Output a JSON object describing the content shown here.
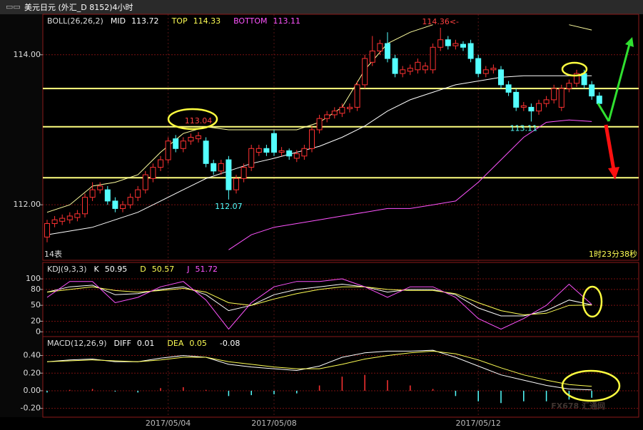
{
  "header": {
    "title": "美元日元 (外汇_D 8152)4小时"
  },
  "watermark": "FX678 汇通网",
  "chart_data": [
    {
      "type": "candlestick",
      "name": "BOLL(26,26,2)",
      "readouts": [
        {
          "label": "MID",
          "value": 113.72,
          "color": "#ffffff"
        },
        {
          "label": "TOP",
          "value": 114.33,
          "color": "#ffff54"
        },
        {
          "label": "BOTTOM",
          "value": 113.11,
          "color": "#ff54ff"
        }
      ],
      "categories": [
        null,
        null,
        null,
        null,
        null,
        null,
        null,
        null,
        null,
        null,
        null,
        null,
        null,
        null,
        null,
        null,
        "2017/05/04",
        null,
        null,
        null,
        null,
        null,
        null,
        null,
        null,
        null,
        null,
        null,
        null,
        null,
        "2017/05/08",
        null,
        null,
        null,
        null,
        null,
        null,
        null,
        null,
        null,
        null,
        null,
        null,
        null,
        null,
        null,
        null,
        null,
        null,
        null,
        null,
        null,
        null,
        null,
        null,
        null,
        null,
        "2017/05/12",
        null,
        null,
        null,
        null,
        null,
        null,
        null,
        null,
        null,
        null,
        null,
        null,
        null,
        null,
        null,
        null
      ],
      "open": [
        111.57,
        111.75,
        111.78,
        111.8,
        111.83,
        111.88,
        112.1,
        112.2,
        112.2,
        112.05,
        111.95,
        112.0,
        112.1,
        112.2,
        112.35,
        112.5,
        112.6,
        112.88,
        112.75,
        112.85,
        112.88,
        112.85,
        112.55,
        112.45,
        112.6,
        112.2,
        112.35,
        112.5,
        112.7,
        112.75,
        112.95,
        112.7,
        112.72,
        112.62,
        112.65,
        112.75,
        113.0,
        113.15,
        113.2,
        113.22,
        113.28,
        113.3,
        113.6,
        113.9,
        114.05,
        114.15,
        113.95,
        113.75,
        113.78,
        113.8,
        113.8,
        113.8,
        114.1,
        114.2,
        114.12,
        114.14,
        114.15,
        113.95,
        113.75,
        113.8,
        113.8,
        113.6,
        113.5,
        113.3,
        113.3,
        113.25,
        113.35,
        113.4,
        113.3,
        113.55,
        113.62,
        113.75,
        113.6,
        113.45
      ],
      "high": [
        111.8,
        111.85,
        111.87,
        111.9,
        111.93,
        112.15,
        112.3,
        112.3,
        112.25,
        112.1,
        112.05,
        112.15,
        112.25,
        112.45,
        112.55,
        112.65,
        112.9,
        112.93,
        112.9,
        112.95,
        112.97,
        112.9,
        112.6,
        112.6,
        112.65,
        112.4,
        112.55,
        112.8,
        112.8,
        112.8,
        113.0,
        112.77,
        112.75,
        112.73,
        112.8,
        113.05,
        113.2,
        113.25,
        113.3,
        113.35,
        113.35,
        113.65,
        114.0,
        114.25,
        114.2,
        114.3,
        114.0,
        113.85,
        113.87,
        113.95,
        113.9,
        114.15,
        114.36,
        114.25,
        114.2,
        114.18,
        114.2,
        114.0,
        113.85,
        113.87,
        113.85,
        113.65,
        113.55,
        113.37,
        113.35,
        113.4,
        113.45,
        113.6,
        113.6,
        113.67,
        113.8,
        113.8,
        113.65,
        113.5
      ],
      "low": [
        111.5,
        111.7,
        111.73,
        111.75,
        111.78,
        111.83,
        112.05,
        112.15,
        112.0,
        111.9,
        111.9,
        111.95,
        112.05,
        112.15,
        112.3,
        112.45,
        112.55,
        112.7,
        112.7,
        112.8,
        112.83,
        112.5,
        112.4,
        112.4,
        112.07,
        112.15,
        112.3,
        112.45,
        112.65,
        112.65,
        112.65,
        112.65,
        112.6,
        112.57,
        112.6,
        112.7,
        112.95,
        113.1,
        113.15,
        113.17,
        113.23,
        113.25,
        113.55,
        113.85,
        114.0,
        113.9,
        113.7,
        113.7,
        113.73,
        113.75,
        113.75,
        113.75,
        114.05,
        114.07,
        114.07,
        114.05,
        113.9,
        113.7,
        113.7,
        113.75,
        113.55,
        113.45,
        113.25,
        113.25,
        113.11,
        113.2,
        113.3,
        113.35,
        113.25,
        113.5,
        113.57,
        113.55,
        113.4,
        113.3
      ],
      "close": [
        111.75,
        111.8,
        111.82,
        111.85,
        111.88,
        112.1,
        112.2,
        112.25,
        112.05,
        111.95,
        112.0,
        112.1,
        112.2,
        112.4,
        112.5,
        112.6,
        112.85,
        112.75,
        112.85,
        112.9,
        112.92,
        112.55,
        112.45,
        112.55,
        112.2,
        112.35,
        112.5,
        112.75,
        112.75,
        112.7,
        112.7,
        112.72,
        112.65,
        112.68,
        112.75,
        113.0,
        113.15,
        113.2,
        113.25,
        113.3,
        113.3,
        113.6,
        113.95,
        114.05,
        114.15,
        113.95,
        113.75,
        113.8,
        113.82,
        113.9,
        113.85,
        114.1,
        114.2,
        114.12,
        114.15,
        114.1,
        113.95,
        113.75,
        113.8,
        113.82,
        113.6,
        113.5,
        113.3,
        113.32,
        113.25,
        113.35,
        113.4,
        113.55,
        113.55,
        113.62,
        113.75,
        113.6,
        113.45,
        113.35
      ],
      "up_color": "#ff3232",
      "down_color": "#54ffff",
      "x": [
        0,
        3,
        6,
        9,
        12,
        15,
        18,
        21,
        24,
        27,
        30,
        33,
        36,
        39,
        42,
        45,
        48,
        51,
        54,
        57,
        60,
        63,
        66,
        69,
        72
      ],
      "bands": [
        {
          "color": "#ffffff",
          "values": [
            111.6,
            111.65,
            111.7,
            111.8,
            111.9,
            112.05,
            112.2,
            112.35,
            112.45,
            112.55,
            112.62,
            112.7,
            112.78,
            112.9,
            113.05,
            113.25,
            113.4,
            113.5,
            113.6,
            113.65,
            113.7,
            113.72,
            113.72,
            113.72,
            113.72
          ]
        },
        {
          "color": "#ffffa0",
          "values": [
            111.9,
            112.0,
            112.25,
            112.3,
            112.4,
            112.7,
            112.95,
            113.04,
            113.0,
            113.0,
            113.0,
            113.0,
            113.1,
            113.3,
            113.8,
            114.15,
            114.3,
            114.4,
            null,
            null,
            null,
            null,
            null,
            114.4,
            114.33
          ]
        },
        {
          "color": "#ff54ff",
          "values": [
            null,
            null,
            null,
            null,
            null,
            null,
            null,
            null,
            111.4,
            111.6,
            111.7,
            111.75,
            111.8,
            111.85,
            111.9,
            111.95,
            111.95,
            112.0,
            112.05,
            112.3,
            112.6,
            112.9,
            113.1,
            113.13,
            113.11
          ]
        }
      ],
      "hlines": [
        113.55,
        113.04,
        112.36
      ],
      "hline_color": "#ffff80",
      "annotations": [
        {
          "value": 113.04,
          "index": 20,
          "color": "#ff4040"
        },
        {
          "value": 112.07,
          "index": 24,
          "color": "#54ffff"
        },
        {
          "value": 114.36,
          "value_label": "114.36<-",
          "index": 52,
          "color": "#ff4040"
        },
        {
          "value": 113.11,
          "index": 63,
          "color": "#54ffff"
        }
      ],
      "corner_left": "14表",
      "corner_right": "1时23分38秒",
      "ylim": [
        111.26,
        114.54
      ],
      "yticks": [
        {
          "value": 112,
          "label": "112.00"
        },
        {
          "value": 114,
          "label": "114.00"
        }
      ]
    },
    {
      "type": "line",
      "name": "KDJ(9,3,3)",
      "readouts": [
        {
          "label": "K",
          "value": 50.95,
          "color": "#ffffff"
        },
        {
          "label": "D",
          "value": 50.57,
          "color": "#ffff54"
        },
        {
          "label": "J",
          "value": 51.72,
          "color": "#ff54ff"
        }
      ],
      "x": [
        0,
        3,
        6,
        9,
        12,
        15,
        18,
        21,
        24,
        27,
        30,
        33,
        36,
        39,
        42,
        45,
        48,
        51,
        54,
        57,
        60,
        63,
        66,
        69,
        72
      ],
      "series": [
        {
          "color": "#ffffff",
          "values": [
            75,
            85,
            88,
            70,
            72,
            80,
            85,
            70,
            40,
            50,
            70,
            80,
            85,
            90,
            85,
            75,
            80,
            80,
            70,
            45,
            30,
            30,
            40,
            60,
            50.95
          ]
        },
        {
          "color": "#ffff54",
          "values": [
            75,
            80,
            85,
            78,
            75,
            78,
            82,
            75,
            55,
            50,
            62,
            72,
            80,
            85,
            85,
            80,
            78,
            78,
            72,
            55,
            40,
            32,
            35,
            50,
            50.57
          ]
        },
        {
          "color": "#ff54ff",
          "values": [
            65,
            95,
            95,
            55,
            65,
            85,
            95,
            60,
            5,
            55,
            85,
            95,
            95,
            100,
            85,
            65,
            85,
            85,
            65,
            25,
            5,
            25,
            50,
            90,
            51.72
          ]
        }
      ],
      "ylim": [
        -9,
        131
      ],
      "yticks": [
        0,
        20,
        50,
        80,
        100
      ]
    },
    {
      "type": "macd",
      "name": "MACD(12,26,9)",
      "readouts": [
        {
          "label": "DIFF",
          "value": 0.01,
          "color": "#ffffff"
        },
        {
          "label": "DEA",
          "value": 0.05,
          "color": "#ffff54"
        },
        {
          "value": -0.08,
          "color": "#ffffff"
        }
      ],
      "x": [
        0,
        3,
        6,
        9,
        12,
        15,
        18,
        21,
        24,
        27,
        30,
        33,
        36,
        39,
        42,
        45,
        48,
        51,
        54,
        57,
        60,
        63,
        66,
        69,
        72
      ],
      "histogram": [
        -0.02,
        0.01,
        0.02,
        -0.01,
        -0.02,
        0.03,
        0.04,
        0.01,
        -0.06,
        -0.05,
        -0.04,
        -0.03,
        0.06,
        0.16,
        0.18,
        0.12,
        0.06,
        0.02,
        -0.06,
        -0.12,
        -0.14,
        -0.12,
        -0.12,
        -0.1,
        -0.08
      ],
      "up_color": "#ff3232",
      "down_color": "#54ffff",
      "series": [
        {
          "color": "#ffffff",
          "values": [
            0.33,
            0.35,
            0.36,
            0.33,
            0.33,
            0.37,
            0.4,
            0.38,
            0.3,
            0.27,
            0.25,
            0.23,
            0.28,
            0.38,
            0.43,
            0.45,
            0.45,
            0.46,
            0.38,
            0.28,
            0.18,
            0.12,
            0.06,
            0.02,
            0.01
          ]
        },
        {
          "color": "#ffff54",
          "values": [
            0.33,
            0.34,
            0.35,
            0.34,
            0.33,
            0.35,
            0.38,
            0.38,
            0.33,
            0.3,
            0.27,
            0.25,
            0.25,
            0.3,
            0.36,
            0.4,
            0.43,
            0.45,
            0.42,
            0.35,
            0.26,
            0.18,
            0.12,
            0.07,
            0.05
          ]
        }
      ],
      "ylim": [
        -0.3,
        0.615
      ],
      "yticks": [
        {
          "value": -0.2,
          "label": "-0.20"
        },
        {
          "value": 0,
          "label": "0.00"
        },
        {
          "value": 0.2,
          "label": "0.20"
        },
        {
          "value": 0.4,
          "label": "0.40"
        }
      ]
    }
  ]
}
